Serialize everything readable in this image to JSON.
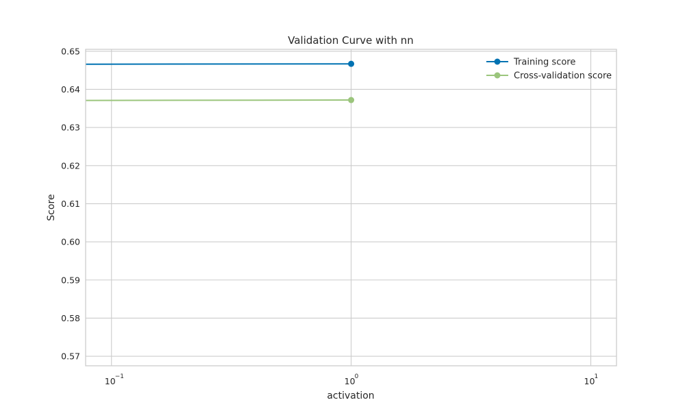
{
  "chart_data": {
    "type": "line",
    "title": "Validation Curve with nn",
    "xlabel": "activation",
    "ylabel": "Score",
    "xscale": "log",
    "xlim": [
      0.078,
      12.8
    ],
    "ylim": [
      0.5675,
      0.6505
    ],
    "grid": true,
    "legend_position": "top-right",
    "x_ticks": [
      {
        "value": 0.1,
        "base": "10",
        "exp": "−1"
      },
      {
        "value": 1,
        "base": "10",
        "exp": "0"
      },
      {
        "value": 10,
        "base": "10",
        "exp": "1"
      }
    ],
    "y_ticks": [
      {
        "value": 0.57,
        "label": "0.57"
      },
      {
        "value": 0.58,
        "label": "0.58"
      },
      {
        "value": 0.59,
        "label": "0.59"
      },
      {
        "value": 0.6,
        "label": "0.60"
      },
      {
        "value": 0.61,
        "label": "0.61"
      },
      {
        "value": 0.62,
        "label": "0.62"
      },
      {
        "value": 0.63,
        "label": "0.63"
      },
      {
        "value": 0.64,
        "label": "0.64"
      },
      {
        "value": 0.65,
        "label": "0.65"
      }
    ],
    "series": [
      {
        "name": "Training score",
        "color": "#0072b2",
        "line": {
          "x": [
            0.078,
            1
          ],
          "y": [
            0.6466,
            0.6467
          ]
        },
        "marker": {
          "x": 1,
          "y": 0.6467
        }
      },
      {
        "name": "Cross-validation score",
        "color": "#9bc57c",
        "line": {
          "x": [
            0.078,
            1
          ],
          "y": [
            0.6371,
            0.6372
          ]
        },
        "marker": {
          "x": 1,
          "y": 0.6372
        }
      }
    ]
  }
}
